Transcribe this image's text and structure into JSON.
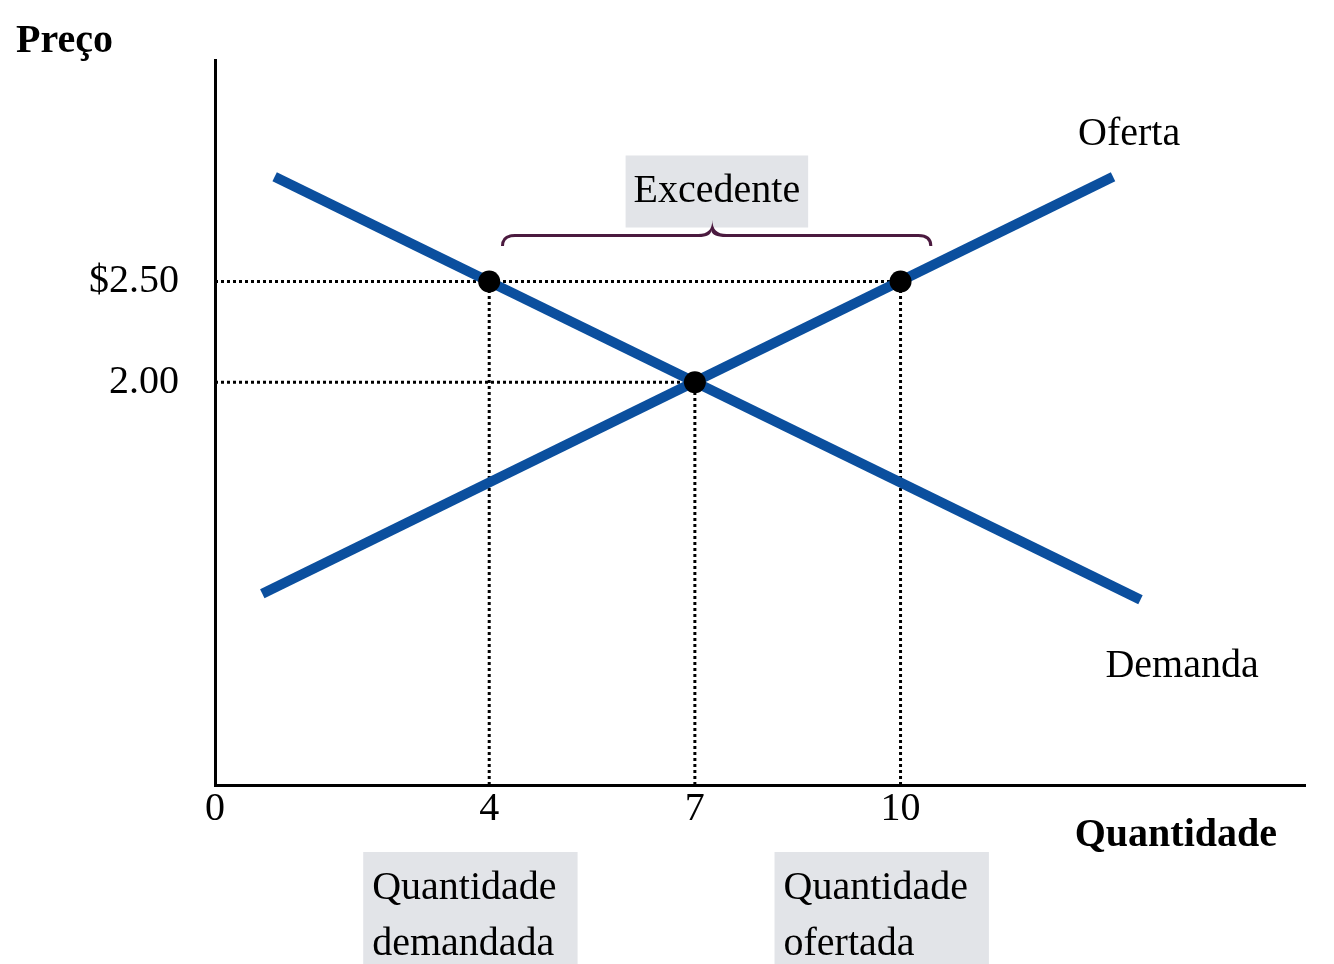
{
  "chart_data": {
    "type": "line",
    "xlabel": "Quantidade",
    "ylabel": "Preço",
    "xlim": [
      0,
      15.9
    ],
    "ylim": [
      0,
      3.6
    ],
    "xticks": [
      0,
      4,
      7,
      10
    ],
    "yticks": [
      {
        "value": 2,
        "label": "2.00"
      },
      {
        "value": 2.5,
        "label": "$2.50"
      }
    ],
    "grid": false,
    "legend": false,
    "series": [
      {
        "type": "line",
        "line_style": "dotted",
        "marker": "none",
        "color": "#000000",
        "x": [
          0,
          10
        ],
        "values": [
          2.5,
          2.5
        ]
      },
      {
        "type": "line",
        "line_style": "dotted",
        "marker": "none",
        "color": "#000000",
        "x": [
          0,
          7
        ],
        "values": [
          2,
          2
        ]
      },
      {
        "type": "line",
        "line_style": "dotted",
        "marker": "none",
        "color": "#000000",
        "x": [
          4,
          4
        ],
        "values": [
          0,
          2.5
        ]
      },
      {
        "type": "line",
        "line_style": "dotted",
        "marker": "none",
        "color": "#000000",
        "x": [
          7,
          7
        ],
        "values": [
          0,
          2
        ]
      },
      {
        "type": "line",
        "line_style": "dotted",
        "marker": "none",
        "color": "#000000",
        "x": [
          10,
          10
        ],
        "values": [
          0,
          2.5
        ]
      },
      {
        "type": "line",
        "name": "Demanda",
        "line_style": "solid",
        "marker": "none",
        "color": "#0b4f9e",
        "x": [
          0.87,
          13.5
        ],
        "values": [
          3.02,
          0.92
        ]
      },
      {
        "type": "line",
        "name": "Oferta",
        "line_style": "solid",
        "marker": "none",
        "color": "#0b4f9e",
        "x": [
          0.69,
          13.1
        ],
        "values": [
          0.95,
          3.02
        ]
      },
      {
        "type": "scatter",
        "marker": "circle",
        "color": "#000000",
        "x": [
          4,
          7,
          10
        ],
        "values": [
          2.5,
          2,
          2.5
        ]
      }
    ],
    "annotations": [
      "Excedente",
      "Quantidade demandada",
      "Quantidade ofertada"
    ]
  }
}
